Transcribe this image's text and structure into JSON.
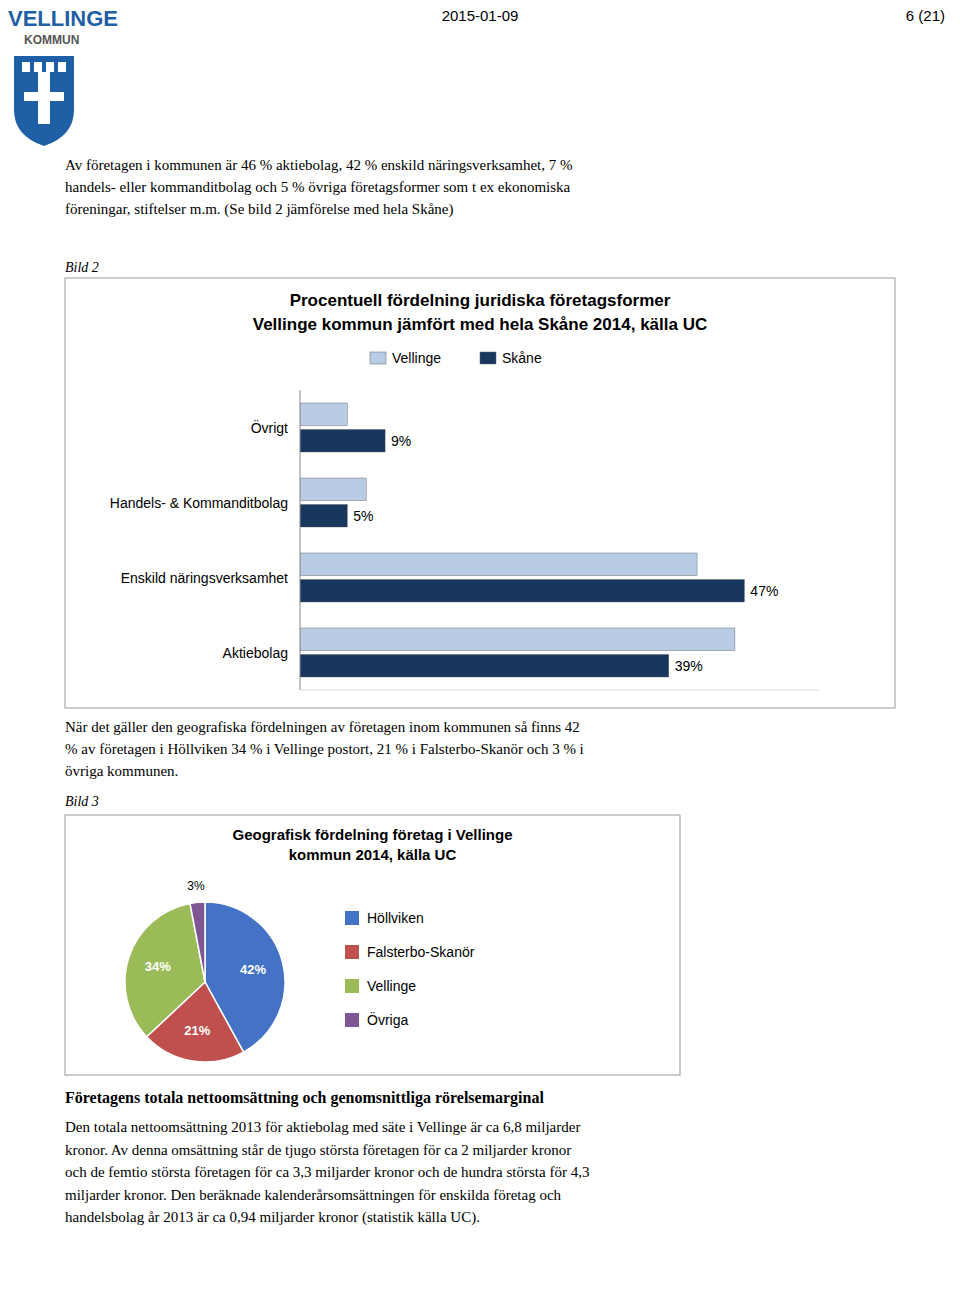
{
  "page": {
    "logo": [
      "VELLINGE",
      "KOMMUN"
    ],
    "logo_color": "#1f5fa6",
    "date": "2015-01-09",
    "page_number": "6 (21)",
    "intro_text": [
      "Av företagen i kommunen är 46 % aktiebolag, 42 % enskild näringsverksamhet, 7 %",
      "handels- eller kommanditbolag och 5 % övriga företagsformer som t ex ekonomiska",
      "föreningar, stiftelser m.m. (Se bild 2 jämförelse med hela Skåne)"
    ],
    "figure_labels": [
      "Bild 2",
      "Bild 3"
    ],
    "mid_text": [
      "När det gäller den geografiska fördelningen av företagen inom kommunen så finns 42",
      "% av företagen i Höllviken 34 % i Vellinge postort, 21 % i Falsterbo-Skanör och 3 % i",
      "övriga kommunen."
    ],
    "bottom_title": "Företagens totala nettoomsättning och genomsnittliga rörelsemarginal",
    "bottom_text": [
      "Den totala nettoomsättning 2013 för aktiebolag med säte i Vellinge är ca 6,8 miljarder",
      "kronor. Av denna omsättning står de tjugo största företagen för ca 2 miljarder kronor",
      "och de femtio största företagen för ca 3,3 miljarder kronor och de hundra största för 4,3",
      "miljarder kronor. Den beräknade kalenderårsomsättningen för enskilda företag och",
      "handelsbolag år 2013 är ca 0,94 miljarder kronor (statistik källa UC)."
    ]
  },
  "chart_data": [
    {
      "type": "bar",
      "orientation": "horizontal",
      "title": "Procentuell fördelning juridiska företagsformer",
      "subtitle": "Vellinge kommun jämfört med hela Skåne 2014, källa UC",
      "categories": [
        "Övrigt",
        "Handels- & Kommanditbolag",
        "Enskild näringsverksamhet",
        "Aktiebolag"
      ],
      "series": [
        {
          "name": "Vellinge",
          "color": "#b8cce4",
          "values": [
            5,
            7,
            42,
            46
          ]
        },
        {
          "name": "Skåne",
          "color": "#17375e",
          "values": [
            9,
            5,
            47,
            39
          ],
          "data_labels": true,
          "value_labels": [
            "9%",
            "5%",
            "47%",
            "39%"
          ]
        }
      ],
      "xlim": [
        0,
        55
      ],
      "grid": false,
      "legend": "top",
      "tick_labels": "y"
    },
    {
      "type": "pie",
      "title": "Geografisk fördelning företag i Vellinge",
      "subtitle": "kommun 2014, källa UC",
      "categories": [
        "Höllviken",
        "Falsterbo-Skanör",
        "Vellinge",
        "Övriga"
      ],
      "values": [
        42,
        21,
        34,
        3
      ],
      "value_labels": [
        "42%",
        "21%",
        "34%",
        "3%"
      ],
      "colors": [
        "#4472c4",
        "#c0504d",
        "#9bbb59",
        "#7e5694"
      ],
      "data_labels": true,
      "legend": "right"
    }
  ]
}
